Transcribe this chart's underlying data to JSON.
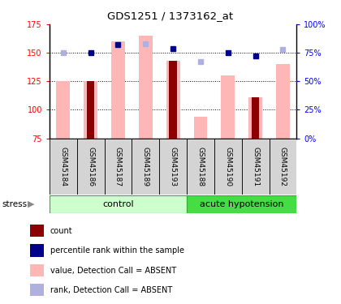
{
  "title": "GDS1251 / 1373162_at",
  "samples": [
    "GSM45184",
    "GSM45186",
    "GSM45187",
    "GSM45189",
    "GSM45193",
    "GSM45188",
    "GSM45190",
    "GSM45191",
    "GSM45192"
  ],
  "value_bars": [
    125,
    125,
    160,
    165,
    143,
    94,
    130,
    111,
    140
  ],
  "count_bars": [
    null,
    125,
    null,
    null,
    143,
    null,
    null,
    111,
    null
  ],
  "rank_dots": [
    null,
    75,
    82,
    null,
    79,
    null,
    75,
    72,
    null
  ],
  "rank_absent_dots": [
    75,
    null,
    null,
    83,
    null,
    67,
    null,
    null,
    78
  ],
  "ylim_left": [
    75,
    175
  ],
  "ylim_right": [
    0,
    100
  ],
  "yticks_left": [
    75,
    100,
    125,
    150,
    175
  ],
  "ytick_labels_left": [
    "75",
    "100",
    "125",
    "150",
    "175"
  ],
  "ytick_labels_right": [
    "0%",
    "25%",
    "50%",
    "75%",
    "100%"
  ],
  "yticks_right": [
    0,
    25,
    50,
    75,
    100
  ],
  "color_value_bar": "#ffb6b6",
  "color_count_bar": "#8b0000",
  "color_rank_dot": "#00008b",
  "color_rank_absent_dot": "#b0b0e0",
  "legend_items": [
    "count",
    "percentile rank within the sample",
    "value, Detection Call = ABSENT",
    "rank, Detection Call = ABSENT"
  ],
  "legend_colors": [
    "#8b0000",
    "#00008b",
    "#ffb6b6",
    "#b0b0e0"
  ],
  "control_count": 5,
  "total_count": 9,
  "ctrl_color": "#ccffcc",
  "hypo_color": "#44dd44",
  "box_edge_color": "#33aa33"
}
